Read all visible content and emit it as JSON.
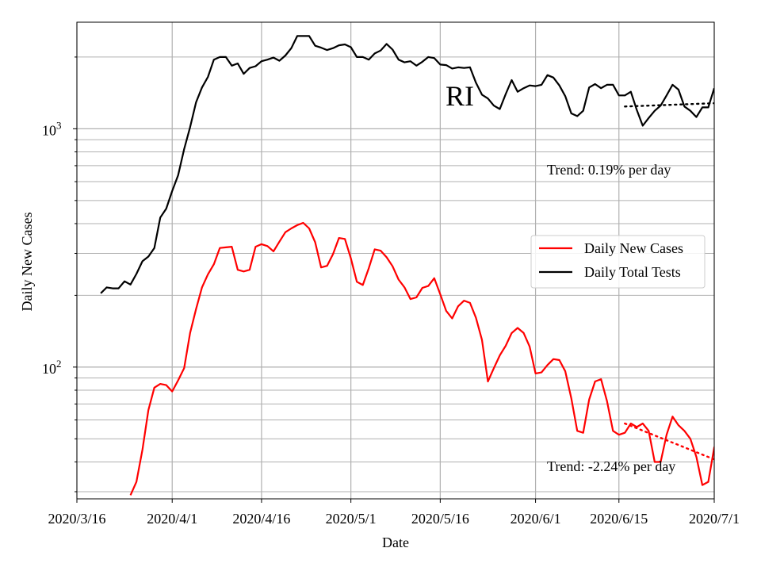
{
  "chart_data": {
    "type": "line",
    "state_label": "RI",
    "xlabel": "Date",
    "ylabel": "Daily New Cases",
    "y_scale": "log",
    "ylim": [
      28,
      2800
    ],
    "xlim": [
      "2020-03-16",
      "2020-07-01"
    ],
    "grid": true,
    "legend_position": "center-right",
    "x_ticks": [
      {
        "label": "2020/3/16",
        "date": "2020-03-16"
      },
      {
        "label": "2020/4/1",
        "date": "2020-04-01"
      },
      {
        "label": "2020/4/16",
        "date": "2020-04-16"
      },
      {
        "label": "2020/5/1",
        "date": "2020-05-01"
      },
      {
        "label": "2020/5/16",
        "date": "2020-05-16"
      },
      {
        "label": "2020/6/1",
        "date": "2020-06-01"
      },
      {
        "label": "2020/6/15",
        "date": "2020-06-15"
      },
      {
        "label": "2020/7/1",
        "date": "2020-07-01"
      }
    ],
    "y_ticks": [
      {
        "base": "10",
        "exp": "2",
        "value": 100
      },
      {
        "base": "10",
        "exp": "3",
        "value": 1000
      }
    ],
    "series": [
      {
        "name": "Daily New Cases",
        "color": "#ff0000",
        "start_date": "2020-03-25",
        "values": [
          29,
          33,
          45,
          66,
          82,
          85,
          84,
          79,
          88,
          99,
          139,
          175,
          216,
          245,
          270,
          316,
          318,
          320,
          256,
          252,
          256,
          320,
          328,
          322,
          306,
          336,
          368,
          382,
          394,
          403,
          382,
          334,
          262,
          266,
          298,
          348,
          345,
          286,
          228,
          221,
          260,
          312,
          308,
          289,
          265,
          233,
          216,
          193,
          196,
          215,
          219,
          236,
          202,
          172,
          160,
          180,
          190,
          186,
          161,
          130,
          87,
          99,
          112,
          123,
          139,
          146,
          139,
          122,
          94,
          95,
          102,
          108,
          107,
          96,
          74,
          54,
          53,
          73,
          87,
          89,
          72,
          54,
          52,
          53,
          58,
          56,
          58,
          54,
          40,
          40,
          52,
          62,
          57,
          54,
          50,
          42,
          32,
          33,
          46,
          51
        ]
      },
      {
        "name": "Daily Total Tests",
        "color": "#000000",
        "start_date": "2020-03-20",
        "values": [
          204,
          216,
          214,
          214,
          229,
          222,
          246,
          278,
          291,
          316,
          424,
          462,
          548,
          638,
          822,
          1015,
          1290,
          1490,
          1650,
          1950,
          2000,
          2000,
          1840,
          1880,
          1700,
          1800,
          1830,
          1920,
          1950,
          1990,
          1930,
          2030,
          2180,
          2450,
          2450,
          2450,
          2230,
          2190,
          2140,
          2180,
          2240,
          2260,
          2200,
          2000,
          2000,
          1950,
          2070,
          2130,
          2270,
          2150,
          1950,
          1900,
          1920,
          1840,
          1910,
          2000,
          1980,
          1860,
          1850,
          1790,
          1810,
          1800,
          1810,
          1560,
          1390,
          1340,
          1250,
          1210,
          1400,
          1600,
          1430,
          1480,
          1520,
          1510,
          1530,
          1680,
          1640,
          1520,
          1370,
          1160,
          1130,
          1190,
          1490,
          1540,
          1480,
          1530,
          1530,
          1380,
          1380,
          1430,
          1200,
          1030,
          1110,
          1190,
          1250,
          1380,
          1530,
          1460,
          1240,
          1190,
          1120,
          1230,
          1230,
          1480
        ]
      }
    ],
    "trends": [
      {
        "label": "Trend: 0.19% per day",
        "color": "#000000",
        "start_date": "2020-06-16",
        "end_date": "2020-07-01",
        "start_value": 1240,
        "end_value": 1280
      },
      {
        "label": "Trend: -2.24% per day",
        "color": "#ff0000",
        "start_date": "2020-06-16",
        "end_date": "2020-07-01",
        "start_value": 58,
        "end_value": 41
      }
    ]
  }
}
